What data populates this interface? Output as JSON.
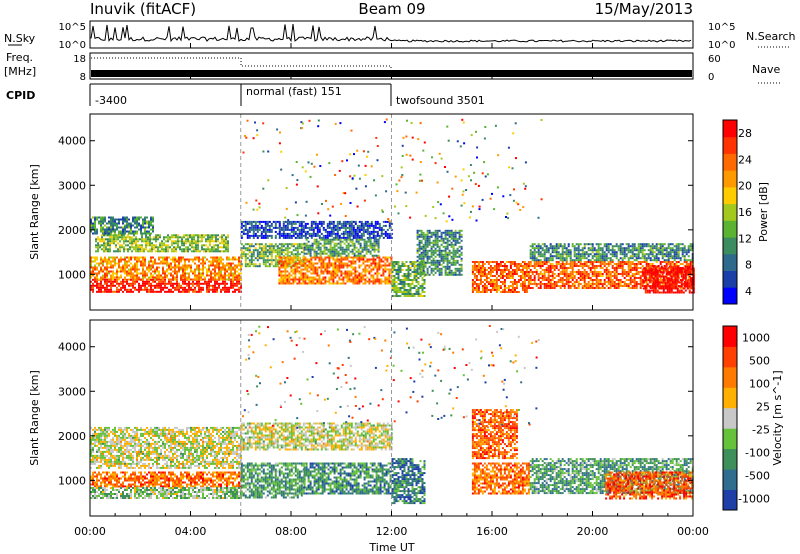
{
  "header": {
    "station": "Inuvik (fitACF)",
    "beam": "Beam 09",
    "date": "15/May/2013"
  },
  "top_panels": {
    "nsky_label": "N.Sky",
    "nsearch_label": "N.Search",
    "nsky_ticks": [
      "10^5",
      "10^0"
    ],
    "nsearch_ticks": [
      "10^5",
      "10^0"
    ],
    "freq_label": "Freq.",
    "freq_unit": "[MHz]",
    "freq_ticks": [
      "18",
      "8"
    ],
    "nave_label": "Nave",
    "nave_ticks": [
      "60",
      "0"
    ],
    "cpid_label": "CPID",
    "cpid_segments": [
      {
        "name": "-3400",
        "start_hr": 0,
        "end_hr": 6
      },
      {
        "name": "normal (fast) 151",
        "start_hr": 6,
        "end_hr": 12
      },
      {
        "name": "twofsound 3501",
        "start_hr": 12,
        "end_hr": 24
      }
    ]
  },
  "chart_data": [
    {
      "type": "heatmap",
      "title": "",
      "xlabel": "",
      "ylabel": "Slant Range [km]",
      "x_range_hr": [
        0,
        24
      ],
      "ylim": [
        200,
        4600
      ],
      "y_ticks": [
        "1000",
        "2000",
        "3000",
        "4000"
      ],
      "colorbar": {
        "label": "Power [dB]",
        "ticks": [
          "28",
          "24",
          "20",
          "16",
          "12",
          "8",
          "4"
        ],
        "colors": [
          "#0000ff",
          "#1b3fa8",
          "#2e6a8c",
          "#3b8c5e",
          "#5ab432",
          "#a3c81e",
          "#ffcc00",
          "#ff9900",
          "#ff6a00",
          "#ff3300",
          "#ff0000"
        ]
      },
      "bands": [
        {
          "start_hr": 0.0,
          "end_hr": 6.0,
          "range_km": [
            600,
            900
          ],
          "level": 0.95
        },
        {
          "start_hr": 0.0,
          "end_hr": 6.0,
          "range_km": [
            900,
            1400
          ],
          "level": 0.7
        },
        {
          "start_hr": 0.2,
          "end_hr": 5.5,
          "range_km": [
            1500,
            1900
          ],
          "level": 0.45
        },
        {
          "start_hr": 0.0,
          "end_hr": 2.5,
          "range_km": [
            1900,
            2300
          ],
          "level": 0.3
        },
        {
          "start_hr": 6.0,
          "end_hr": 12.0,
          "range_km": [
            1800,
            2200
          ],
          "level": 0.15
        },
        {
          "start_hr": 6.0,
          "end_hr": 8.5,
          "range_km": [
            1200,
            1700
          ],
          "level": 0.4
        },
        {
          "start_hr": 7.5,
          "end_hr": 12.0,
          "range_km": [
            800,
            1400
          ],
          "level": 0.75
        },
        {
          "start_hr": 8.5,
          "end_hr": 11.5,
          "range_km": [
            1400,
            1800
          ],
          "level": 0.35
        },
        {
          "start_hr": 12.0,
          "end_hr": 13.3,
          "range_km": [
            500,
            1300
          ],
          "level": 0.4
        },
        {
          "start_hr": 13.0,
          "end_hr": 14.8,
          "range_km": [
            1000,
            2000
          ],
          "level": 0.3
        },
        {
          "start_hr": 15.2,
          "end_hr": 17.5,
          "range_km": [
            600,
            1300
          ],
          "level": 0.8
        },
        {
          "start_hr": 17.5,
          "end_hr": 24.0,
          "range_km": [
            700,
            1300
          ],
          "level": 0.8
        },
        {
          "start_hr": 17.5,
          "end_hr": 24.0,
          "range_km": [
            1300,
            1700
          ],
          "level": 0.3
        },
        {
          "start_hr": 22.0,
          "end_hr": 24.0,
          "range_km": [
            600,
            1200
          ],
          "level": 1.0
        }
      ]
    },
    {
      "type": "heatmap",
      "title": "",
      "xlabel": "Time UT",
      "ylabel": "Slant Range [km]",
      "x_range_hr": [
        0,
        24
      ],
      "x_ticks": [
        "00:00",
        "04:00",
        "08:00",
        "12:00",
        "16:00",
        "20:00",
        "00:00"
      ],
      "ylim": [
        200,
        4600
      ],
      "y_ticks": [
        "1000",
        "2000",
        "3000",
        "4000"
      ],
      "colorbar": {
        "label": "Velocity [m s^-1]",
        "ticks": [
          "1000",
          "500",
          "100",
          "25",
          "-25",
          "-100",
          "-500",
          "-1000"
        ],
        "colors": [
          "#1f3fa8",
          "#2f6e8f",
          "#3e8f5a",
          "#66c23a",
          "#c8c8c8",
          "#ffb000",
          "#ff7a00",
          "#ff4000",
          "#ff0000"
        ]
      },
      "bands": [
        {
          "start_hr": 0.0,
          "end_hr": 6.0,
          "range_km": [
            850,
            1200
          ],
          "level": 0.75
        },
        {
          "start_hr": 0.0,
          "end_hr": 6.0,
          "range_km": [
            600,
            850
          ],
          "level": 0.4
        },
        {
          "start_hr": 0.0,
          "end_hr": 6.0,
          "range_km": [
            1300,
            2200
          ],
          "level": 0.5
        },
        {
          "start_hr": 6.0,
          "end_hr": 12.0,
          "range_km": [
            1700,
            2300
          ],
          "level": 0.5
        },
        {
          "start_hr": 6.0,
          "end_hr": 8.5,
          "range_km": [
            600,
            1400
          ],
          "level": 0.3
        },
        {
          "start_hr": 8.5,
          "end_hr": 12.0,
          "range_km": [
            700,
            1400
          ],
          "level": 0.25
        },
        {
          "start_hr": 12.0,
          "end_hr": 13.3,
          "range_km": [
            500,
            1500
          ],
          "level": 0.2
        },
        {
          "start_hr": 15.2,
          "end_hr": 17.0,
          "range_km": [
            1500,
            2600
          ],
          "level": 0.78
        },
        {
          "start_hr": 15.2,
          "end_hr": 17.5,
          "range_km": [
            700,
            1400
          ],
          "level": 0.75
        },
        {
          "start_hr": 17.5,
          "end_hr": 24.0,
          "range_km": [
            700,
            1500
          ],
          "level": 0.3
        },
        {
          "start_hr": 20.5,
          "end_hr": 24.0,
          "range_km": [
            600,
            1200
          ],
          "level": 0.8
        }
      ]
    }
  ]
}
